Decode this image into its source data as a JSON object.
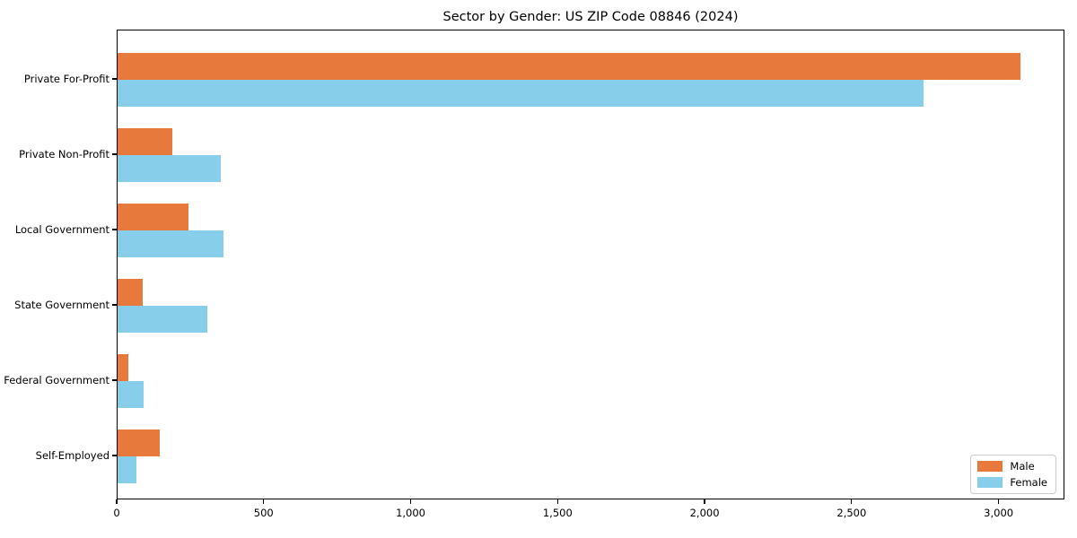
{
  "figure": {
    "background": "#ffffff",
    "axis_color": "#000000"
  },
  "chart_data": {
    "type": "bar",
    "orientation": "horizontal",
    "title": "Sector by Gender: US ZIP Code 08846 (2024)",
    "xlabel": "",
    "ylabel": "",
    "grid": false,
    "categories": [
      "Private For-Profit",
      "Private Non-Profit",
      "Local Government",
      "State Government",
      "Federal Government",
      "Self-Employed"
    ],
    "series": [
      {
        "name": "Male",
        "color": "#E8793D",
        "values": [
          3070,
          185,
          240,
          85,
          38,
          142
        ]
      },
      {
        "name": "Female",
        "color": "#87CEEB",
        "values": [
          2740,
          350,
          360,
          305,
          87,
          64
        ]
      }
    ],
    "xlim": [
      0,
      3224
    ],
    "xticks": [
      0,
      500,
      1000,
      1500,
      2000,
      2500,
      3000
    ],
    "xtick_labels": [
      "0",
      "500",
      "1,000",
      "1,500",
      "2,000",
      "2,500",
      "3,000"
    ],
    "legend_position": "lower right",
    "legend_entries": [
      "Male",
      "Female"
    ]
  }
}
